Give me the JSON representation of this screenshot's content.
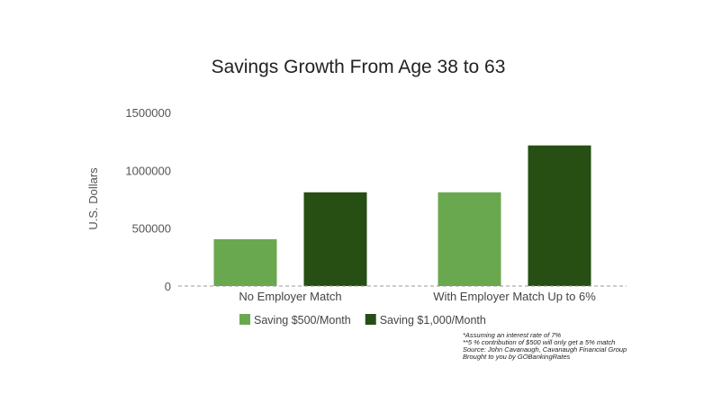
{
  "chart_data": {
    "type": "bar",
    "title": "Savings Growth From Age 38 to 63",
    "ylabel": "U.S. Dollars",
    "xlabel": "",
    "categories": [
      "No Employer Match",
      "With Employer Match Up to 6%"
    ],
    "series": [
      {
        "name": "Saving $500/Month",
        "color": "#6aa84f",
        "values": [
          405000,
          810000
        ]
      },
      {
        "name": "Saving $1,000/Month",
        "color": "#274e13",
        "values": [
          810000,
          1215000
        ]
      }
    ],
    "ylim": [
      0,
      1500000
    ],
    "yticks": [
      0,
      500000,
      1000000,
      1500000
    ],
    "ytick_labels": [
      "0",
      "500000",
      "1000000",
      "1500000"
    ],
    "grid": false,
    "legend_position": "bottom-center",
    "footnotes": [
      "*Assuming an interest rate of 7%",
      "**5 % contribution of $500 will only get a 5% match",
      "Source: John Cavanaugh, Cavanaugh Financial Group",
      "Brought to you by GOBankingRates"
    ]
  }
}
